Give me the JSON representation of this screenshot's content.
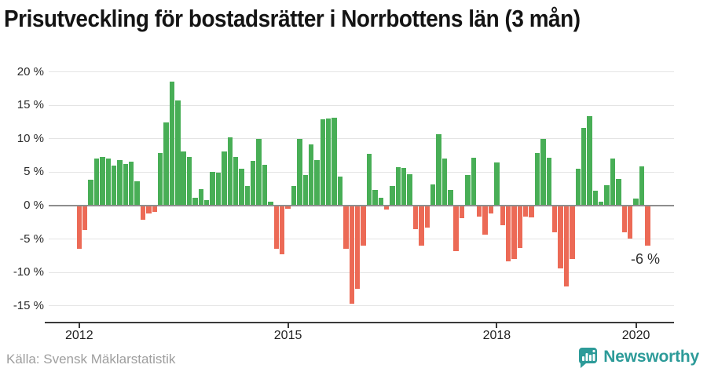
{
  "title": "Prisutveckling för bostadsrätter i Norrbottens län (3 mån)",
  "source": "Källa: Svensk Mäklarstatistik",
  "annotation": {
    "text": "-6 %"
  },
  "brand": {
    "name": "Newsworthy",
    "logo_icon": "bar-chart-speech-bubble"
  },
  "colors": {
    "positive": "#48ae56",
    "negative": "#ec6a56",
    "grid": "#e4e4e4",
    "zero_line": "#8e8e8e",
    "axis_line": "#3a3a3a",
    "brand_teal": "#2d9b99",
    "source_gray": "#9e9e9e"
  },
  "chart_data": {
    "type": "bar",
    "title": "Prisutveckling för bostadsrätter i Norrbottens län (3 mån)",
    "xlabel": "",
    "ylabel": "",
    "y_unit": "%",
    "ylim": [
      -15,
      20
    ],
    "grid": true,
    "legend": false,
    "frequency": "monthly",
    "x_start": "2012-01",
    "yticks": [
      20,
      15,
      10,
      5,
      0,
      -5,
      -10,
      -15
    ],
    "ytick_suffix": " %",
    "xticks": [
      {
        "label": "2012",
        "month_index": 0
      },
      {
        "label": "2015",
        "month_index": 36
      },
      {
        "label": "2018",
        "month_index": 72
      },
      {
        "label": "2020",
        "month_index": 96
      }
    ],
    "values": [
      -6.4,
      -3.6,
      3.9,
      7.0,
      7.3,
      7.1,
      6.0,
      6.8,
      6.2,
      6.6,
      3.6,
      -2.1,
      -1.2,
      -0.9,
      7.9,
      12.5,
      18.6,
      15.7,
      8.1,
      7.3,
      1.2,
      2.5,
      0.8,
      5.1,
      4.9,
      8.1,
      10.2,
      7.3,
      5.5,
      2.9,
      6.7,
      10.0,
      6.1,
      0.6,
      -6.5,
      -7.3,
      -0.5,
      2.9,
      10.0,
      4.6,
      9.2,
      6.8,
      12.9,
      13.0,
      13.2,
      4.4,
      -6.4,
      -14.7,
      -12.4,
      -6.0,
      7.8,
      2.3,
      1.2,
      -0.6,
      2.9,
      5.8,
      5.6,
      4.7,
      -3.5,
      -6.0,
      -3.3,
      3.2,
      10.7,
      7.1,
      2.4,
      -6.8,
      -1.9,
      4.6,
      7.2,
      -1.6,
      -4.4,
      -1.2,
      6.4,
      -2.9,
      -8.3,
      -8.0,
      -6.3,
      -1.7,
      -1.8,
      7.9,
      10.0,
      7.2,
      -4.0,
      -9.4,
      -12.1,
      -8.0,
      5.5,
      11.6,
      13.4,
      2.2,
      0.6,
      3.0,
      7.0,
      4.0,
      -4.0,
      -4.9,
      1.0,
      5.9,
      -6.0
    ],
    "last_value_annotation": "-6 %"
  }
}
